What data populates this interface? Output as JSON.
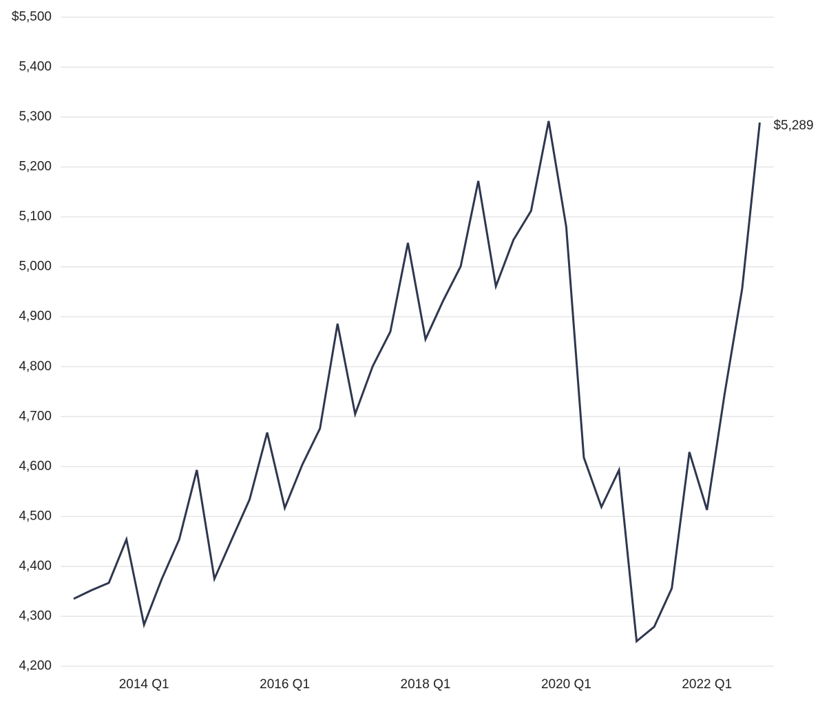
{
  "chart_data": {
    "type": "line",
    "categories": [
      null,
      null,
      null,
      null,
      "2014 Q1",
      null,
      null,
      null,
      null,
      null,
      null,
      null,
      "2016 Q1",
      null,
      null,
      null,
      null,
      null,
      null,
      null,
      "2018 Q1",
      null,
      null,
      null,
      null,
      null,
      null,
      null,
      "2020 Q1",
      null,
      null,
      null,
      null,
      null,
      null,
      null,
      "2022 Q1",
      null,
      null,
      null
    ],
    "values": [
      4335,
      4352,
      4367,
      4454,
      4283,
      4374,
      4454,
      4593,
      4375,
      4455,
      4534,
      4668,
      4517,
      4604,
      4676,
      4886,
      4705,
      4801,
      4870,
      5048,
      4855,
      4932,
      5001,
      5172,
      4961,
      5054,
      5112,
      5292,
      5080,
      4618,
      4519,
      4593,
      4250,
      4279,
      4356,
      4629,
      4513,
      4745,
      4956,
      5289
    ],
    "value_labels": [
      null,
      null,
      null,
      null,
      null,
      null,
      null,
      null,
      null,
      null,
      null,
      null,
      null,
      null,
      null,
      null,
      null,
      null,
      null,
      null,
      null,
      null,
      null,
      null,
      null,
      null,
      null,
      null,
      null,
      null,
      null,
      null,
      null,
      null,
      null,
      null,
      null,
      null,
      null,
      "$5,289"
    ],
    "color": "#2f374f",
    "ylim": [
      4200,
      5500
    ],
    "yticks": [
      {
        "value": 4200,
        "label": "4,200"
      },
      {
        "value": 4300,
        "label": "4,300"
      },
      {
        "value": 4400,
        "label": "4,400"
      },
      {
        "value": 4500,
        "label": "4,500"
      },
      {
        "value": 4600,
        "label": "4,600"
      },
      {
        "value": 4700,
        "label": "4,700"
      },
      {
        "value": 4800,
        "label": "4,800"
      },
      {
        "value": 4900,
        "label": "4,900"
      },
      {
        "value": 5000,
        "label": "5,000"
      },
      {
        "value": 5100,
        "label": "5,100"
      },
      {
        "value": 5200,
        "label": "5,200"
      },
      {
        "value": 5300,
        "label": "5,300"
      },
      {
        "value": 5400,
        "label": "5,400"
      },
      {
        "value": 5500,
        "label": "$5,500"
      }
    ],
    "grid": true
  }
}
